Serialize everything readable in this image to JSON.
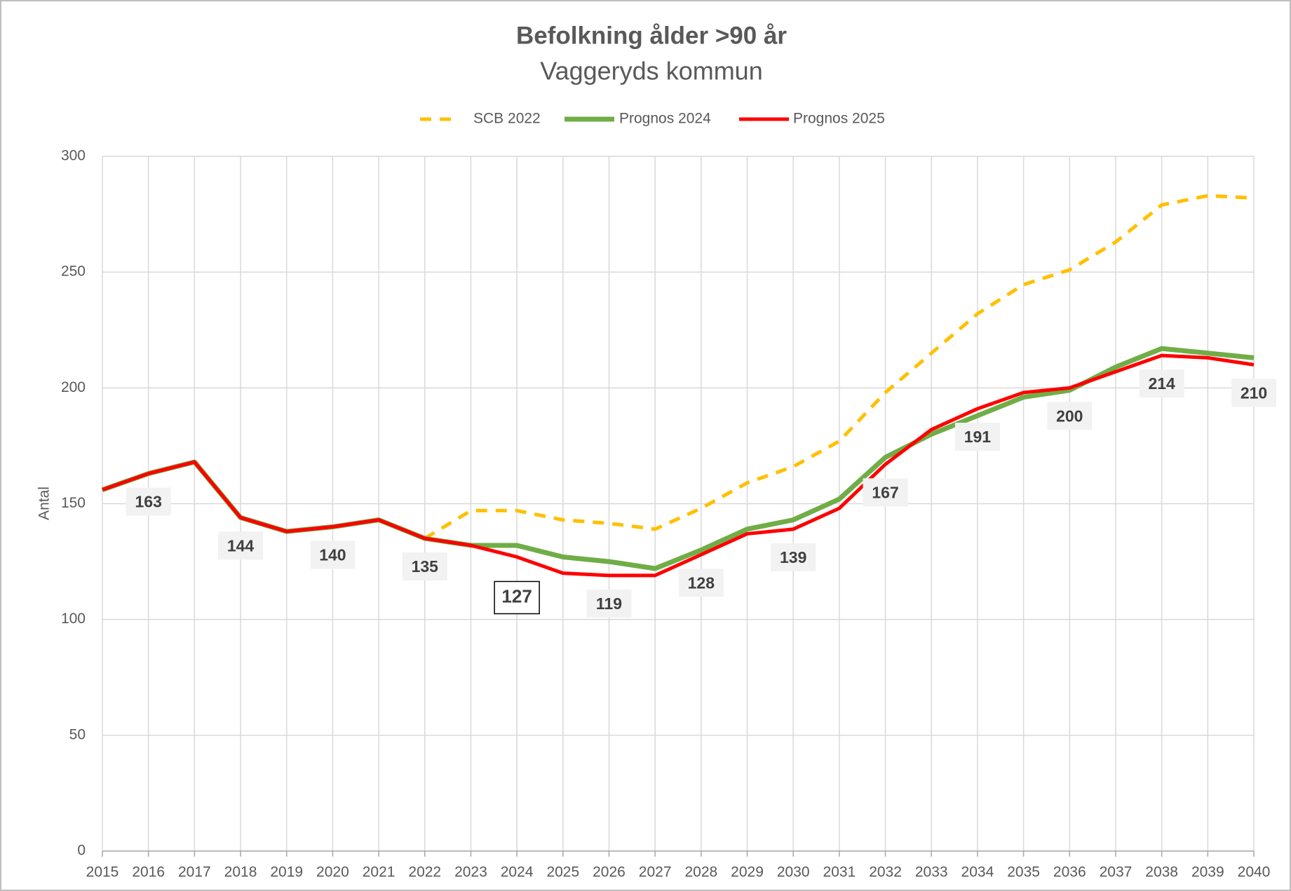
{
  "chart_data": {
    "type": "line",
    "title": "Befolkning ålder >90 år",
    "subtitle": "Vaggeryds kommun",
    "y_label": "Antal",
    "categories": [
      "2015",
      "2016",
      "2017",
      "2018",
      "2019",
      "2020",
      "2021",
      "2022",
      "2023",
      "2024",
      "2025",
      "2026",
      "2027",
      "2028",
      "2029",
      "2030",
      "2031",
      "2032",
      "2033",
      "2034",
      "2035",
      "2036",
      "2037",
      "2038",
      "2039",
      "2040"
    ],
    "series": [
      {
        "name": "SCB 2022",
        "color": "#ffc000",
        "dashed": true,
        "values": [
          null,
          null,
          null,
          null,
          null,
          null,
          null,
          135,
          147,
          147,
          143,
          141.5,
          139,
          148,
          159,
          166,
          177,
          198,
          215,
          232,
          244.6,
          251,
          263,
          279,
          283,
          282
        ]
      },
      {
        "name": "Prognos 2024",
        "color": "#70ad47",
        "values": [
          156,
          163,
          168,
          144,
          138,
          140,
          143,
          135,
          132,
          132,
          127,
          125,
          122,
          130,
          139,
          143,
          152,
          170,
          180,
          188,
          196,
          199,
          209,
          217,
          215,
          213
        ]
      },
      {
        "name": "Prognos 2025",
        "color": "#ff0000",
        "values": [
          156,
          163,
          168,
          144,
          138,
          140,
          143,
          135,
          132,
          127,
          120,
          119,
          119,
          128,
          137,
          139,
          148,
          167,
          182,
          191,
          198,
          200,
          207,
          214,
          213,
          210
        ],
        "value_labels": [
          null,
          "163",
          null,
          "144",
          null,
          "140",
          null,
          "135",
          null,
          "127",
          null,
          "119",
          null,
          "128",
          null,
          "139",
          null,
          "167",
          null,
          "191",
          null,
          "200",
          null,
          "214",
          null,
          "210"
        ],
        "boxed_label_index": 9
      }
    ],
    "ylim": [
      0,
      300
    ],
    "yticks": [
      0,
      50,
      100,
      150,
      200,
      250,
      300
    ],
    "grid": true,
    "legend": "top"
  }
}
